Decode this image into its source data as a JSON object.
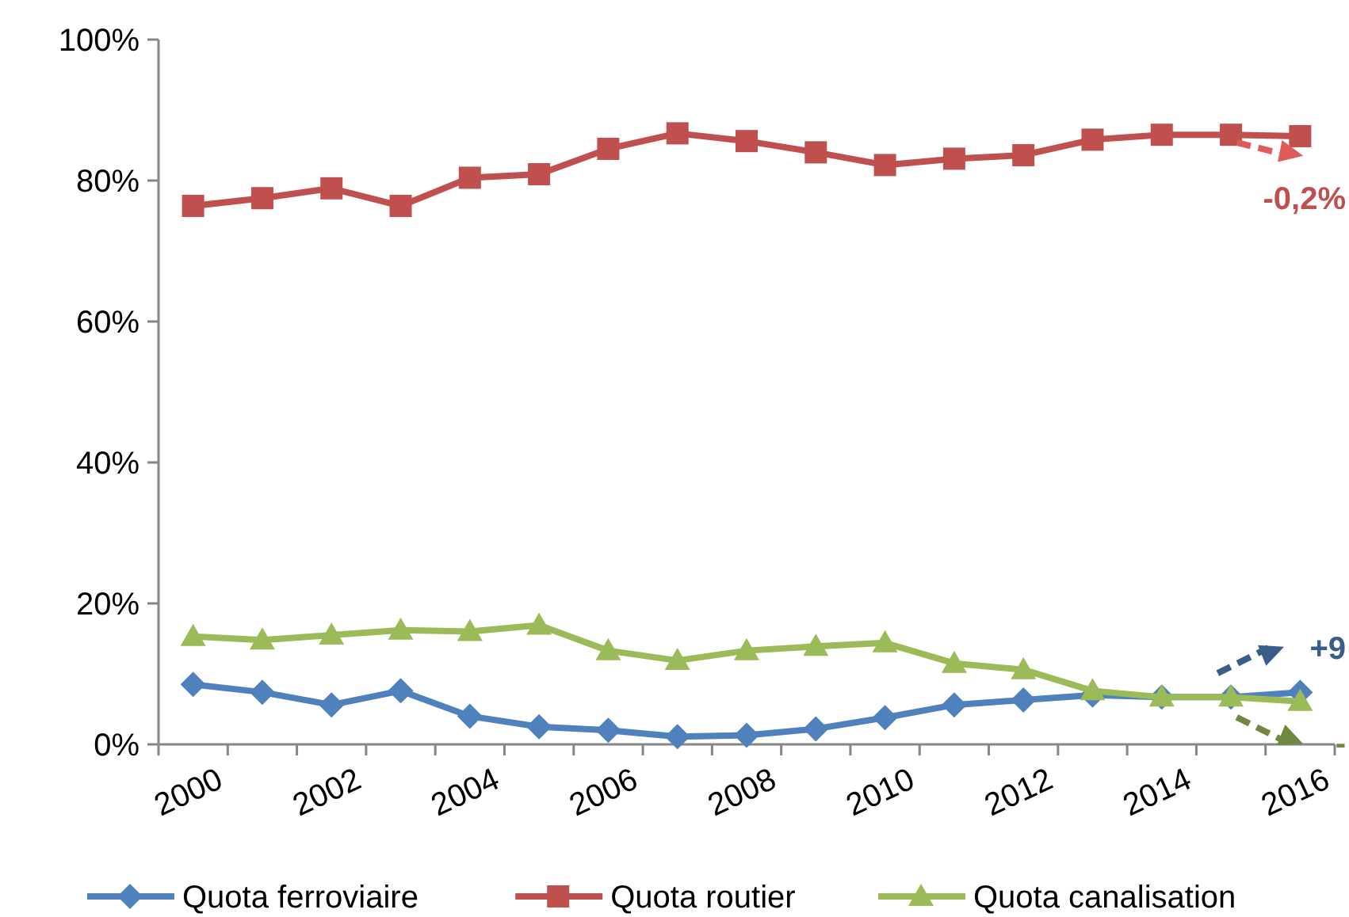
{
  "chart_data": {
    "type": "line",
    "categories": [
      "2000",
      null,
      "2002",
      null,
      "2004",
      null,
      "2006",
      null,
      "2008",
      null,
      "2010",
      null,
      "2012",
      null,
      "2014",
      null,
      "2016"
    ],
    "ylim": [
      0,
      100
    ],
    "yticks": [
      {
        "value": 0,
        "label": "0%"
      },
      {
        "value": 20,
        "label": "20%"
      },
      {
        "value": 40,
        "label": "40%"
      },
      {
        "value": 60,
        "label": "60%"
      },
      {
        "value": 80,
        "label": "80%"
      },
      {
        "value": 100,
        "label": "100%"
      }
    ],
    "grid": false,
    "legend": "bottom",
    "series": [
      {
        "name": "Quota ferroviaire",
        "color": "#4f81bd",
        "marker": "diamond",
        "values": [
          8.5,
          7.4,
          5.6,
          7.6,
          4.0,
          2.5,
          2.0,
          1.1,
          1.3,
          2.2,
          3.8,
          5.6,
          6.3,
          7.0,
          6.7,
          6.7,
          7.4
        ]
      },
      {
        "name": "Quota routier",
        "color": "#c0504d",
        "marker": "square",
        "values": [
          76.4,
          77.5,
          78.9,
          76.4,
          80.4,
          80.9,
          84.5,
          86.7,
          85.6,
          84.0,
          82.2,
          83.1,
          83.6,
          85.8,
          86.5,
          86.5,
          86.3
        ]
      },
      {
        "name": "Quota canalisation",
        "color": "#9bbb59",
        "marker": "triangle",
        "values": [
          15.3,
          14.8,
          15.5,
          16.2,
          16.0,
          16.9,
          13.3,
          11.9,
          13.3,
          13.9,
          14.4,
          11.5,
          10.6,
          7.6,
          6.7,
          6.7,
          6.1
        ]
      }
    ],
    "annotations": [
      "-0,2%",
      "+9",
      "-"
    ]
  }
}
